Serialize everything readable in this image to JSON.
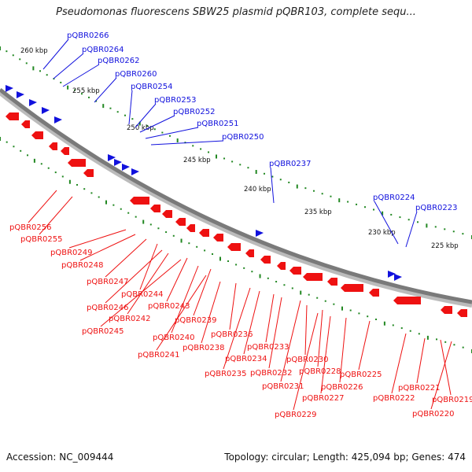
{
  "title": "Pseudomonas fluorescens SBW25 plasmid pQBR103, complete sequ...",
  "footer": {
    "accession": "Accession: NC_009444",
    "summary": "Topology: circular; Length: 425,094 bp; Genes: 474"
  },
  "colors": {
    "forward": "#1111dd",
    "reverse": "#ee1111",
    "backbone": "#888888",
    "ticks": "#228822"
  },
  "tick_labels": [
    "260 kbp",
    "255 kbp",
    "250 kbp",
    "245 kbp",
    "240 kbp",
    "235 kbp",
    "230 kbp",
    "225 kbp"
  ],
  "forward_genes": [
    "pQBR0266",
    "pQBR0264",
    "pQBR0262",
    "pQBR0260",
    "pQBR0254",
    "pQBR0253",
    "pQBR0252",
    "pQBR0251",
    "pQBR0250",
    "pQBR0237",
    "pQBR0224",
    "pQBR0223"
  ],
  "reverse_genes": [
    "pQBR0256",
    "pQBR0255",
    "pQBR0249",
    "pQBR0248",
    "pQBR0247",
    "pQBR0244",
    "pQBR0246",
    "pQBR0243",
    "pQBR0242",
    "pQBR0245",
    "pQBR0239",
    "pQBR0240",
    "pQBR0241",
    "pQBR0238",
    "pQBR0236",
    "pQBR0235",
    "pQBR0234",
    "pQBR0233",
    "pQBR0232",
    "pQBR0231",
    "pQBR0230",
    "pQBR0228",
    "pQBR0229",
    "pQBR0227",
    "pQBR0226",
    "pQBR0225",
    "pQBR0222",
    "pQBR0221",
    "pQBR0219",
    "pQBR0220"
  ]
}
